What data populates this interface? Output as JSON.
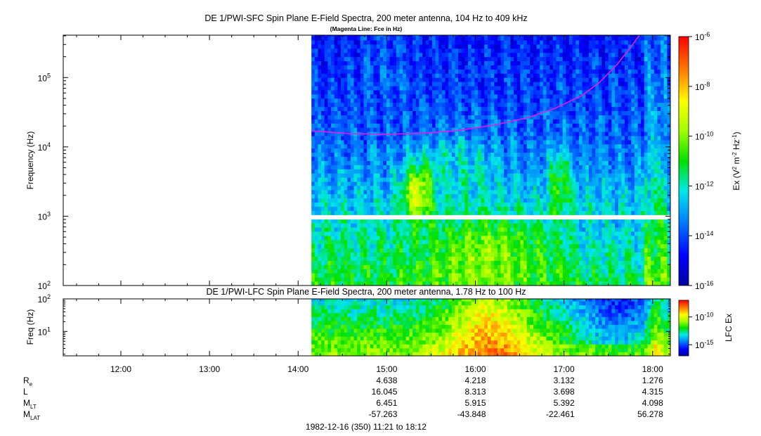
{
  "chart_data": [
    {
      "type": "heatmap",
      "title": "DE 1/PWI-SFC  Spin Plane E-Field Spectra, 200 meter antenna, 104 Hz to 409 kHz",
      "subtitle": "(Magenta Line: Fce in Hz)",
      "ylabel": "Frequency (Hz)",
      "yscale": "log",
      "ylim": [
        100,
        409000
      ],
      "yticks": [
        {
          "v": 100,
          "b": "10",
          "e": "2"
        },
        {
          "v": 1000,
          "b": "10",
          "e": "3"
        },
        {
          "v": 10000,
          "b": "10",
          "e": "4"
        },
        {
          "v": 100000,
          "b": "10",
          "e": "5"
        }
      ],
      "xlim_hours": [
        11.35,
        18.2
      ],
      "data_start_hour": 14.15,
      "gap_hz": 950,
      "colorbar": {
        "label": "Ex (V² m⁻² Hz⁻¹)",
        "label_parts": {
          "pre": "Ex (V",
          "s1": "2",
          "mid1": " m",
          "s2": "-2",
          "mid2": " Hz",
          "s3": "-1",
          "post": ")"
        },
        "range_log": [
          -16,
          -6
        ],
        "ticks": [
          {
            "v": -6,
            "b": "10",
            "e": "-6"
          },
          {
            "v": -8,
            "b": "10",
            "e": "-8"
          },
          {
            "v": -10,
            "b": "10",
            "e": "-10"
          },
          {
            "v": -12,
            "b": "10",
            "e": "-12"
          },
          {
            "v": -14,
            "b": "10",
            "e": "-14"
          },
          {
            "v": -16,
            "b": "10",
            "e": "-16"
          }
        ]
      },
      "fce_line": {
        "name": "Fce",
        "color": "#e020e0",
        "x_hours": [
          14.15,
          14.6,
          15.0,
          15.4,
          15.8,
          16.2,
          16.6,
          16.9,
          17.2,
          17.4,
          17.6,
          17.75,
          17.85
        ],
        "y_hz": [
          17000,
          15500,
          15200,
          15700,
          17200,
          20500,
          26500,
          36000,
          55000,
          85000,
          155000,
          270000,
          409000
        ]
      }
    },
    {
      "type": "heatmap",
      "title": "DE 1/PWI-LFC  Spin Plane E-Field Spectra, 200 meter antenna, 1.78 Hz to 100 Hz",
      "ylabel": "Freq (Hz)",
      "yscale": "log",
      "ylim": [
        1.78,
        100
      ],
      "yticks": [
        {
          "v": 10,
          "b": "10",
          "e": "1"
        },
        {
          "v": 100,
          "b": "10",
          "e": "2"
        }
      ],
      "xlim_hours": [
        11.35,
        18.2
      ],
      "data_start_hour": 14.15,
      "colorbar": {
        "label": "LFC Ex",
        "range_log": [
          -17,
          -7
        ],
        "ticks": [
          {
            "v": -10,
            "b": "10",
            "e": "-10"
          },
          {
            "v": -15,
            "b": "10",
            "e": "-15"
          }
        ]
      }
    }
  ],
  "x_axis": {
    "ticks": [
      {
        "hour": 12,
        "label": "12:00"
      },
      {
        "hour": 13,
        "label": "13:00"
      },
      {
        "hour": 14,
        "label": "14:00"
      },
      {
        "hour": 15,
        "label": "15:00"
      },
      {
        "hour": 16,
        "label": "16:00"
      },
      {
        "hour": 17,
        "label": "17:00"
      },
      {
        "hour": 18,
        "label": "18:00"
      }
    ]
  },
  "ephemeris": {
    "rows": [
      {
        "name": "R",
        "sub": "e",
        "values": [
          "4.638",
          "4.218",
          "3.132",
          "1.276"
        ]
      },
      {
        "name": "L",
        "sub": "",
        "values": [
          "16.045",
          "8.313",
          "3.698",
          "4.315"
        ]
      },
      {
        "name": "M",
        "sub": "LT",
        "values": [
          "6.451",
          "5.915",
          "5.392",
          "4.098"
        ]
      },
      {
        "name": "M",
        "sub": "LAT",
        "values": [
          "-57.263",
          "-43.848",
          "-22.461",
          "56.278"
        ]
      }
    ]
  },
  "footer": "1982-12-16 (350) 11:21 to 18:12"
}
